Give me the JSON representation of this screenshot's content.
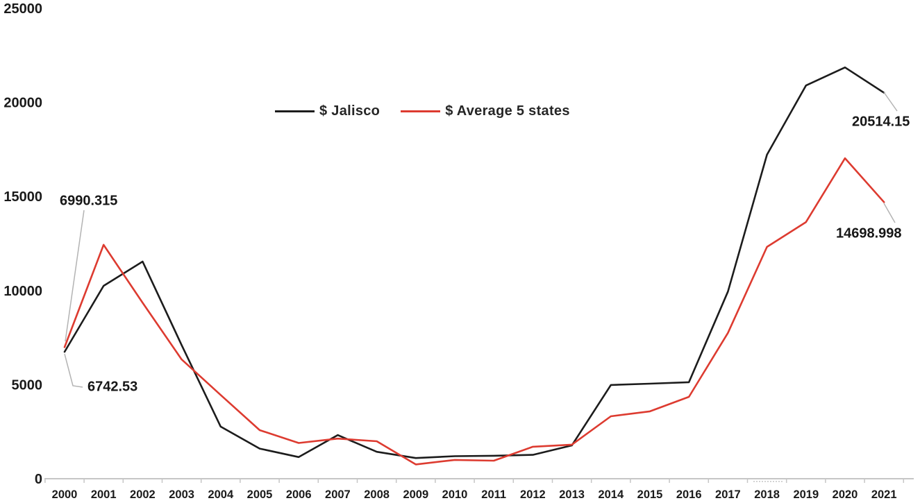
{
  "chart_data": {
    "type": "line",
    "x": [
      2000,
      2001,
      2002,
      2003,
      2004,
      2005,
      2006,
      2007,
      2008,
      2009,
      2010,
      2011,
      2012,
      2013,
      2014,
      2015,
      2016,
      2017,
      2018,
      2019,
      2020,
      2021
    ],
    "series": [
      {
        "name": "$ Jalisco",
        "color": "#1c1c1c",
        "values": [
          6742.53,
          10250,
          11540,
          7100,
          2770,
          1600,
          1150,
          2320,
          1430,
          1100,
          1200,
          1220,
          1270,
          1770,
          4980,
          5050,
          5130,
          9950,
          17220,
          20900,
          21860,
          20514.15
        ]
      },
      {
        "name": "$ Average 5 states",
        "color": "#dd3b30",
        "values": [
          6990.315,
          12430,
          9350,
          6340,
          4450,
          2580,
          1900,
          2130,
          1990,
          760,
          1000,
          960,
          1700,
          1810,
          3320,
          3580,
          4350,
          7750,
          12320,
          13640,
          17030,
          14698.998
        ]
      }
    ],
    "title": "",
    "xlabel": "",
    "ylabel": "",
    "ylim": [
      0,
      25000
    ],
    "yticks": [
      0,
      5000,
      10000,
      15000,
      20000,
      25000
    ],
    "grid": false,
    "legend_position": "top-center",
    "annotations": [
      {
        "text": "6990.315",
        "series": "$ Average 5 states",
        "year": 2000,
        "value": 6990.315
      },
      {
        "text": "6742.53",
        "series": "$ Jalisco",
        "year": 2000,
        "value": 6742.53
      },
      {
        "text": "20514.15",
        "series": "$ Jalisco",
        "year": 2021,
        "value": 20514.15
      },
      {
        "text": "14698.998",
        "series": "$ Average 5 states",
        "year": 2021,
        "value": 14698.998
      }
    ],
    "axis_color": "#c6c6c6",
    "leader_line_color": "#b3b3b3",
    "tick_label_color": "#1a1a1a"
  }
}
